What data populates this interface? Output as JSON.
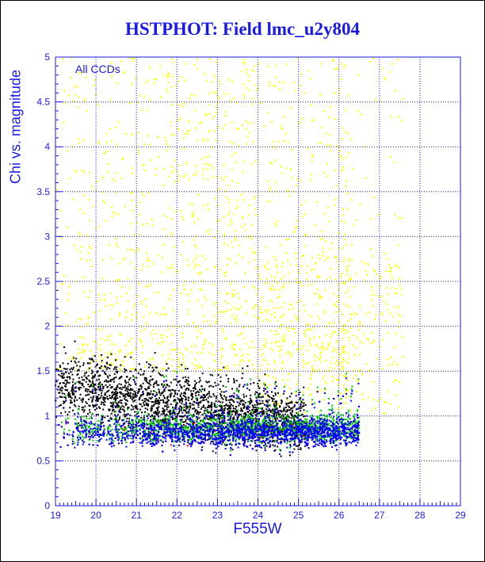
{
  "title": "HSTPHOT: Field lmc_u2y804",
  "colors": {
    "axis": "#1a1ae6",
    "grid": "#1a1ae6",
    "text": "#1a1ae6",
    "series": [
      "#ffff00",
      "#000000",
      "#ff0000",
      "#00cc00",
      "#0000ff"
    ]
  },
  "chart_data": {
    "type": "scatter",
    "title": "HSTPHOT: Field lmc_u2y804",
    "xlabel": "F555W",
    "ylabel": "Chi vs. magnitude",
    "annotation": "All CCDs",
    "xlim": [
      19,
      29
    ],
    "ylim": [
      0,
      5
    ],
    "x_ticks": [
      19,
      20,
      21,
      22,
      23,
      24,
      25,
      26,
      27,
      28,
      29
    ],
    "y_ticks": [
      0,
      0.5,
      1,
      1.5,
      2,
      2.5,
      3,
      3.5,
      4,
      4.5,
      5
    ],
    "y_tick_labels": [
      "0",
      "0.5",
      "1",
      "1.5",
      "2",
      "2.5",
      "3",
      "3.5",
      "4",
      "4.5",
      "5"
    ],
    "grid": true,
    "point_groups": [
      {
        "color": "#ffff00",
        "count": 1700,
        "x_range": [
          19.0,
          27.6
        ],
        "chi_range": [
          1.6,
          5.0
        ],
        "description": "sparse high-chi stars"
      },
      {
        "color": "#000000",
        "count": 2200,
        "x_range": [
          19.0,
          25.2
        ],
        "chi_range": [
          0.5,
          2.3
        ],
        "description": "bright stars, chi falling with magnitude"
      },
      {
        "color": "#ff0000",
        "count": 900,
        "x_range": [
          19.0,
          26.5
        ],
        "chi_range": [
          0.5,
          1.3
        ]
      },
      {
        "color": "#00cc00",
        "count": 1300,
        "x_range": [
          19.0,
          26.5
        ],
        "chi_range": [
          0.5,
          1.4
        ]
      },
      {
        "color": "#0000ff",
        "count": 2300,
        "x_range": [
          19.0,
          26.5
        ],
        "chi_range": [
          0.5,
          1.2
        ]
      }
    ]
  }
}
